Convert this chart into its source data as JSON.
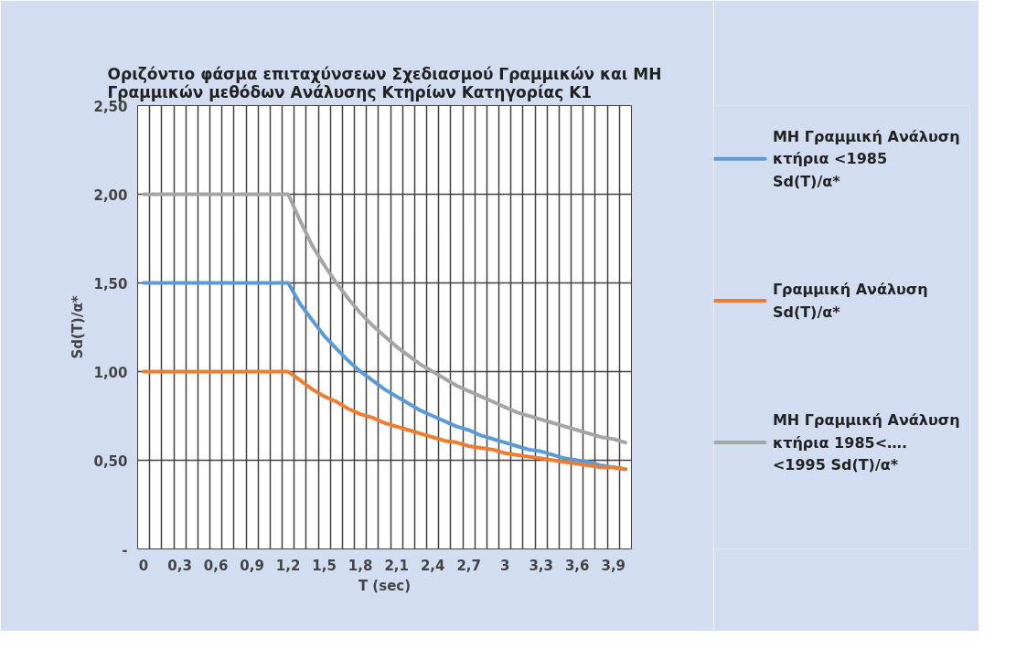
{
  "chart_data": {
    "type": "line",
    "title": "Οριζόντιο φάσμα επιταχύνσεων Σχεδιασμού Γραμμικών και ΜΗ Γραμμικών μεθόδων Ανάλυσης Κτηρίων Κατηγορίας Κ1",
    "xlabel": "T (sec)",
    "ylabel": "Sd(T)/α*",
    "categories": [
      "0",
      null,
      null,
      "0,3",
      null,
      null,
      "0,6",
      null,
      null,
      "0,9",
      null,
      null,
      "1,2",
      null,
      null,
      "1,5",
      null,
      null,
      "1,8",
      null,
      null,
      "2,1",
      null,
      null,
      "2,4",
      null,
      null,
      "2,7",
      null,
      null,
      "3",
      null,
      null,
      "3,3",
      null,
      null,
      "3,6",
      null,
      null,
      "3,9",
      null
    ],
    "series": [
      {
        "name": "ΜΗ Γραμμική Ανάλυση κτήρια <1985 Sd(T)/α*",
        "color": "#5b9bd5",
        "values": [
          1.5,
          1.5,
          1.5,
          1.5,
          1.5,
          1.5,
          1.5,
          1.5,
          1.5,
          1.5,
          1.5,
          1.5,
          1.5,
          1.38,
          1.29,
          1.2,
          1.13,
          1.06,
          1.0,
          0.95,
          0.9,
          0.86,
          0.82,
          0.78,
          0.75,
          0.72,
          0.69,
          0.67,
          0.64,
          0.62,
          0.6,
          0.58,
          0.56,
          0.55,
          0.53,
          0.51,
          0.5,
          0.49,
          0.47,
          0.46,
          0.45
        ]
      },
      {
        "name": "Γραμμική Ανάλυση Sd(T)/α*",
        "color": "#ed7d31",
        "values": [
          1.0,
          1.0,
          1.0,
          1.0,
          1.0,
          1.0,
          1.0,
          1.0,
          1.0,
          1.0,
          1.0,
          1.0,
          1.0,
          0.95,
          0.9,
          0.86,
          0.83,
          0.79,
          0.76,
          0.74,
          0.71,
          0.69,
          0.67,
          0.65,
          0.63,
          0.61,
          0.6,
          0.58,
          0.57,
          0.56,
          0.54,
          0.53,
          0.52,
          0.51,
          0.5,
          0.49,
          0.48,
          0.47,
          0.46,
          0.46,
          0.45
        ]
      },
      {
        "name": "ΜΗ Γραμμική Ανάλυση κτήρια 1985<…. <1995 Sd(T)/α*",
        "color": "#a5a5a5",
        "values": [
          2.0,
          2.0,
          2.0,
          2.0,
          2.0,
          2.0,
          2.0,
          2.0,
          2.0,
          2.0,
          2.0,
          2.0,
          2.0,
          1.85,
          1.71,
          1.6,
          1.5,
          1.41,
          1.33,
          1.26,
          1.2,
          1.14,
          1.09,
          1.04,
          1.0,
          0.96,
          0.92,
          0.89,
          0.86,
          0.83,
          0.8,
          0.77,
          0.75,
          0.73,
          0.71,
          0.69,
          0.67,
          0.65,
          0.63,
          0.62,
          0.6
        ]
      }
    ],
    "ylim": [
      0,
      2.5
    ],
    "yticks": [
      {
        "value": 0,
        "label": "-"
      },
      {
        "value": 0.5,
        "label": "0,50"
      },
      {
        "value": 1.0,
        "label": "1,00"
      },
      {
        "value": 1.5,
        "label": "1,50"
      },
      {
        "value": 2.0,
        "label": "2,00"
      },
      {
        "value": 2.5,
        "label": "2,50"
      }
    ],
    "grid": true,
    "legend": "right",
    "marker": "none",
    "line_style": "solid"
  }
}
